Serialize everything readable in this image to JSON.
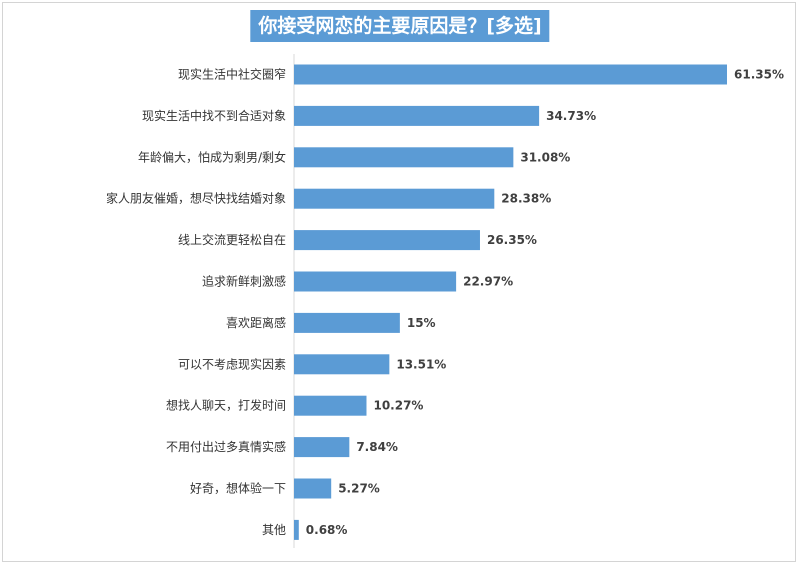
{
  "colors": {
    "bar": "#5b9bd5",
    "title_bg": "#5b9bd5",
    "title_text": "#ffffff",
    "axis": "#d9d9d9"
  },
  "chart_data": {
    "type": "bar",
    "orientation": "horizontal",
    "title": "你接受网恋的主要原因是？[多选]",
    "xlabel": "",
    "ylabel": "",
    "xlim": [
      0,
      65
    ],
    "grid": false,
    "legend": "none",
    "categories": [
      "现实生活中社交圈窄",
      "现实生活中找不到合适对象",
      "年龄偏大，怕成为剩男/剩女",
      "家人朋友催婚，想尽快找结婚对象",
      "线上交流更轻松自在",
      "追求新鲜刺激感",
      "喜欢距离感",
      "可以不考虑现实因素",
      "想找人聊天，打发时间",
      "不用付出过多真情实感",
      "好奇，想体验一下",
      "其他"
    ],
    "values": [
      61.35,
      34.73,
      31.08,
      28.38,
      26.35,
      22.97,
      15,
      13.51,
      10.27,
      7.84,
      5.27,
      0.68
    ],
    "value_labels": [
      "61.35%",
      "34.73%",
      "31.08%",
      "28.38%",
      "26.35%",
      "22.97%",
      "15%",
      "13.51%",
      "10.27%",
      "7.84%",
      "5.27%",
      "0.68%"
    ]
  }
}
